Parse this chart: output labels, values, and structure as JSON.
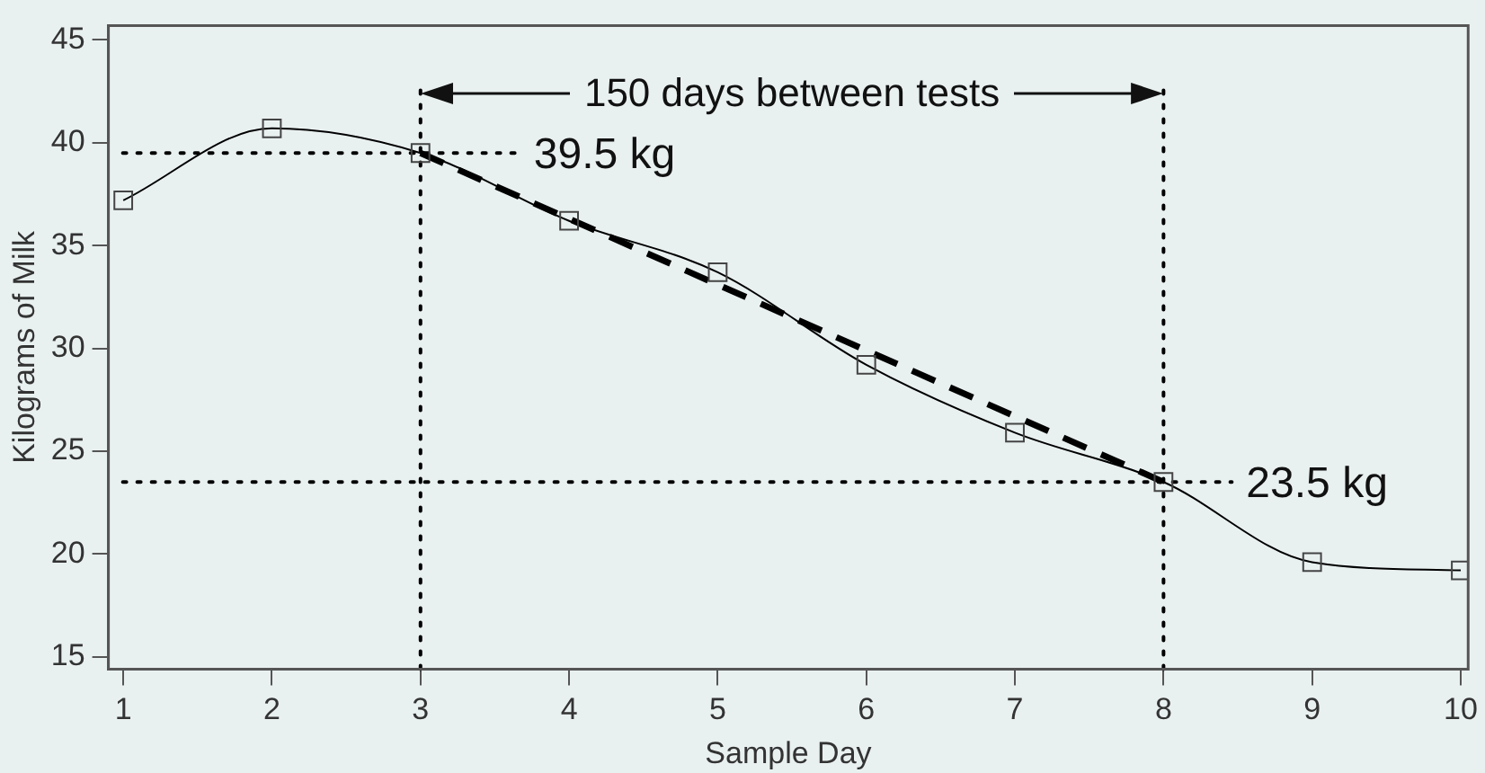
{
  "chart_data": {
    "type": "line",
    "xlabel": "Sample Day",
    "ylabel": "Kilograms of Milk",
    "x": [
      1,
      2,
      3,
      4,
      5,
      6,
      7,
      8,
      9,
      10
    ],
    "xlim": [
      0.9,
      10.05
    ],
    "xticks": [
      1,
      2,
      3,
      4,
      5,
      6,
      7,
      8,
      9,
      10
    ],
    "ylim": [
      14.4,
      45.7
    ],
    "yticks": [
      15,
      20,
      25,
      30,
      35,
      40,
      45
    ],
    "grid": false,
    "legend": false,
    "marker": "square",
    "series": [
      {
        "color": "#000000",
        "values": [
          37.2,
          40.7,
          39.5,
          36.2,
          33.7,
          29.2,
          25.9,
          23.5,
          19.6,
          19.2
        ]
      },
      {
        "type": "line",
        "color": "#000000",
        "x": [
          3,
          8
        ],
        "values": [
          39.5,
          23.5
        ],
        "line_style": "dashed",
        "marker": "none"
      }
    ],
    "ref_lines": [
      {
        "axis": "y",
        "value": 39.5,
        "label": "39.5 kg",
        "line_style": "dotted",
        "color": "#000000"
      },
      {
        "axis": "y",
        "value": 23.5,
        "label": "23.5 kg",
        "line_style": "dotted",
        "color": "#000000"
      },
      {
        "axis": "x",
        "value": 3,
        "line_style": "dotted",
        "color": "#000000"
      },
      {
        "axis": "x",
        "value": 8,
        "line_style": "dotted",
        "color": "#000000"
      }
    ],
    "annotations": [
      "150 days between tests"
    ]
  }
}
